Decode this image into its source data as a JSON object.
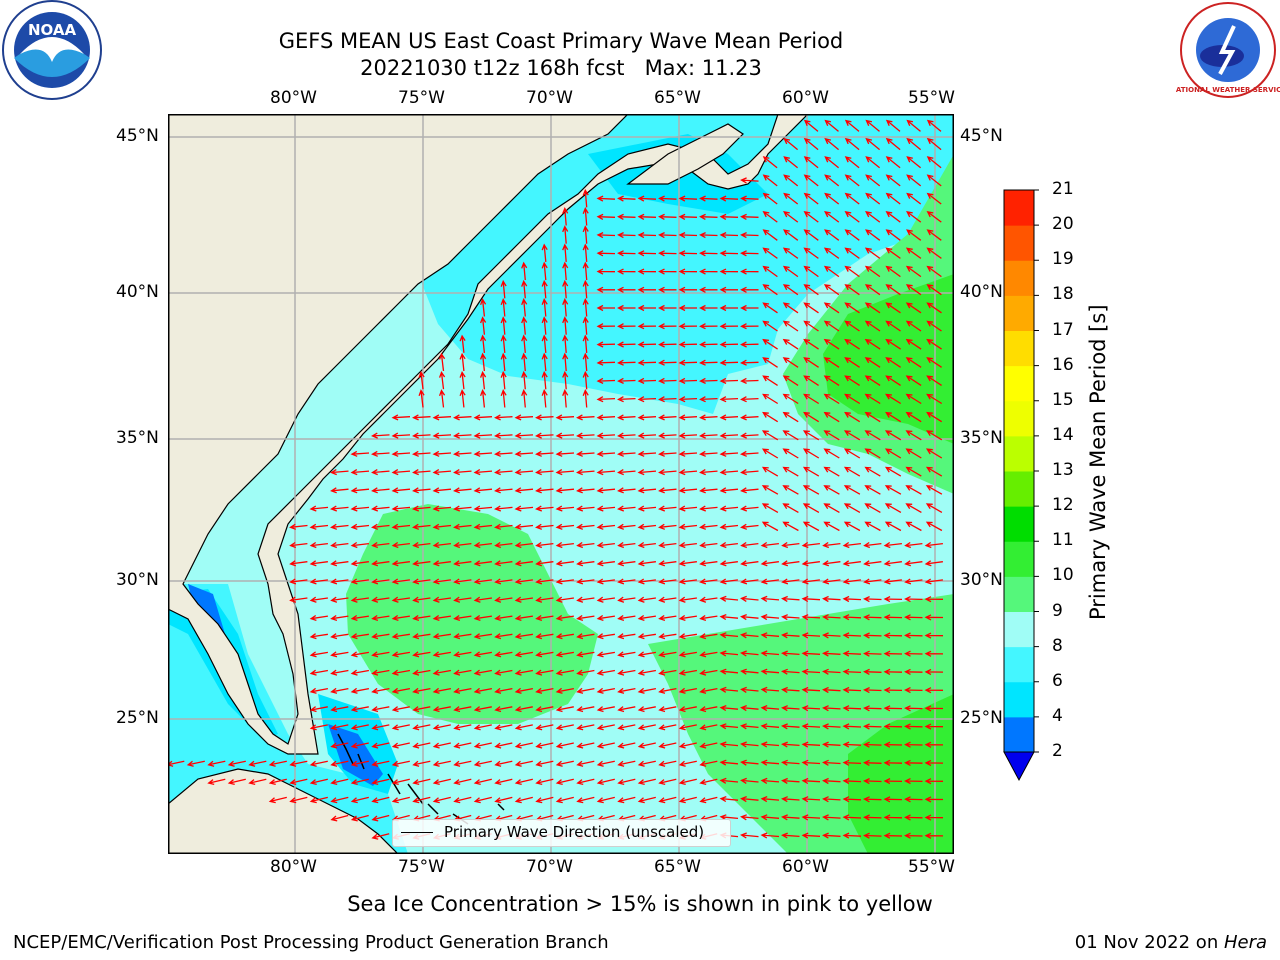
{
  "header": {
    "title_line1": "GEFS MEAN US East Coast Primary Wave Mean Period",
    "title_line2": "20221030 t12z 168h fcst   Max: 11.23"
  },
  "logos": {
    "left": {
      "icon": "noaa-logo",
      "text": "NOAA"
    },
    "right": {
      "icon": "nws-logo",
      "text": "NATIONAL WEATHER SERVICE"
    }
  },
  "map": {
    "lon_labels": [
      "80°W",
      "75°W",
      "70°W",
      "65°W",
      "60°W",
      "55°W"
    ],
    "lat_labels": [
      "45°N",
      "40°N",
      "35°N",
      "30°N",
      "25°N"
    ],
    "legend": {
      "label": "Primary Wave Direction (unscaled)"
    },
    "colors": {
      "land": "#efeddd",
      "arrow": "#ff0000",
      "grid": "#b0b0b0"
    }
  },
  "colorbar": {
    "title": "Primary Wave Mean Period [s]",
    "levels": [
      "2",
      "4",
      "6",
      "8",
      "9",
      "10",
      "11",
      "12",
      "13",
      "14",
      "15",
      "16",
      "17",
      "18",
      "19",
      "20",
      "21"
    ],
    "colors": [
      "#0000ee",
      "#0077ff",
      "#00e5ff",
      "#44f6ff",
      "#a0fdf6",
      "#55f77b",
      "#33ee33",
      "#00dd00",
      "#66ee00",
      "#bbff00",
      "#eeff00",
      "#ffff00",
      "#ffdd00",
      "#ffaa00",
      "#ff8800",
      "#ff5500",
      "#ff2200",
      "#ff0000"
    ]
  },
  "caption": "Sea Ice Concentration > 15% is shown in pink to yellow",
  "footer": {
    "left": "NCEP/EMC/Verification Post Processing Product Generation Branch",
    "right_date": "01 Nov 2022 on ",
    "right_host": "Hera"
  }
}
